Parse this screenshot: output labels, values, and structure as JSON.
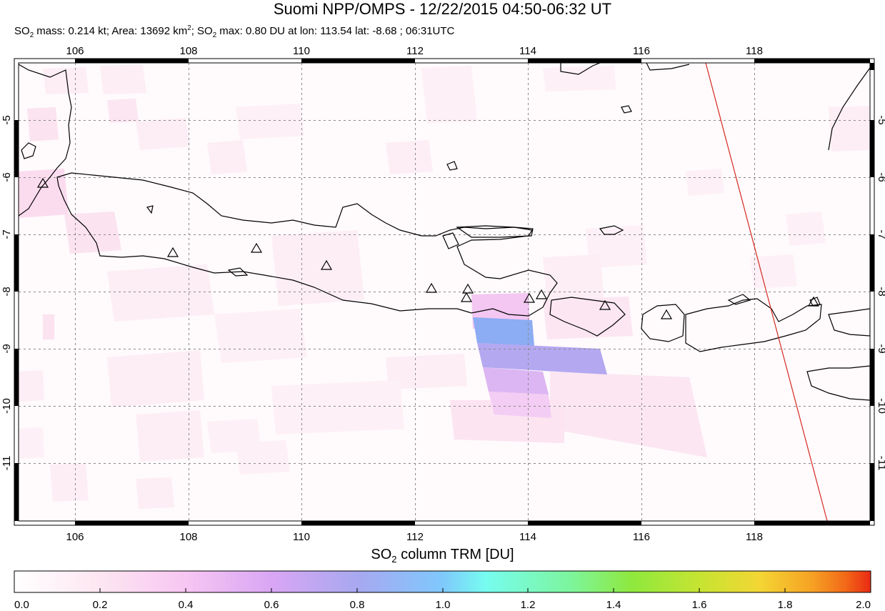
{
  "title": "Suomi NPP/OMPS - 12/22/2015 04:50-06:32 UT",
  "subtitle": {
    "mass_label": "SO",
    "mass_sub": "2",
    "mass_text": " mass: 0.214 kt; Area: 13692 km",
    "area_sup": "2",
    "max_label": "; SO",
    "max_sub": "2",
    "max_text": " max: 0.80 DU at lon: 113.54 lat: -8.68 ; 06:31UTC"
  },
  "map": {
    "lon_ticks": [
      "106",
      "108",
      "110",
      "112",
      "114",
      "116",
      "118"
    ],
    "lat_ticks": [
      "-5",
      "-6",
      "-7",
      "-8",
      "-9",
      "-10",
      "-11"
    ],
    "volcano_count_note": "triangles mark volcanoes"
  },
  "colorbar": {
    "title_main": "SO",
    "title_sub": "2",
    "title_rest": " column TRM [DU]",
    "ticks": [
      "0.0",
      "0.2",
      "0.4",
      "0.6",
      "0.8",
      "1.0",
      "1.2",
      "1.4",
      "1.6",
      "1.8",
      "2.0"
    ],
    "colors": [
      "#ffffff",
      "#fde6f1",
      "#f7c6f2",
      "#d9a6f4",
      "#a8a8f0",
      "#7fc8fc",
      "#76fcf0",
      "#7df59c",
      "#8ee83e",
      "#c6e432",
      "#f3d634",
      "#f6a324",
      "#f26a18",
      "#ea2a14"
    ]
  }
}
